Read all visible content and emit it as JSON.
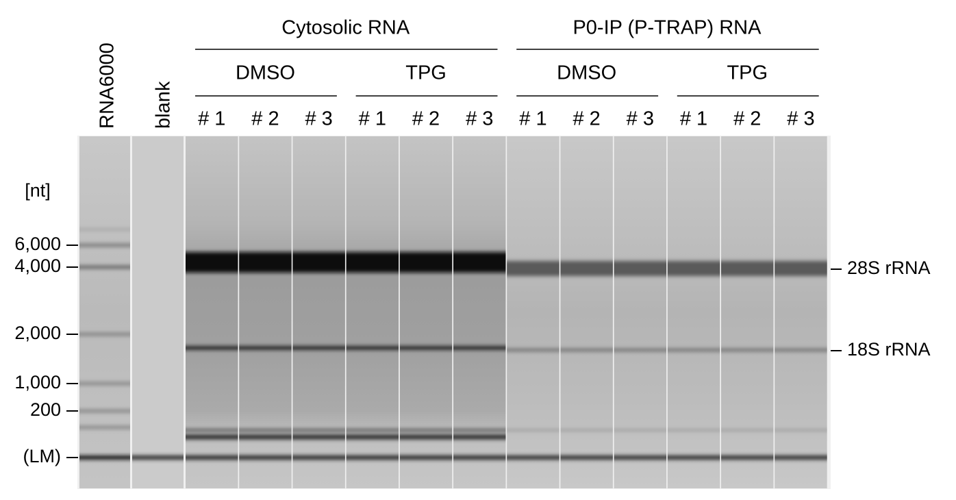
{
  "ladder_label": "RNA6000",
  "blank_label": "blank",
  "groups": [
    {
      "label": "Cytosolic RNA",
      "conditions": [
        {
          "label": "DMSO",
          "replicates": [
            "# 1",
            "# 2",
            "# 3"
          ]
        },
        {
          "label": "TPG",
          "replicates": [
            "# 1",
            "# 2",
            "# 3"
          ]
        }
      ]
    },
    {
      "label": "P0-IP (P-TRAP) RNA",
      "conditions": [
        {
          "label": "DMSO",
          "replicates": [
            "# 1",
            "# 2",
            "# 3"
          ]
        },
        {
          "label": "TPG",
          "replicates": [
            "# 1",
            "# 2",
            "# 3"
          ]
        }
      ]
    }
  ],
  "size_unit": "[nt]",
  "size_markers": [
    "6,000",
    "4,000",
    "2,000",
    "1,000",
    "200",
    "(LM)"
  ],
  "band_labels": [
    "28S rRNA",
    "18S rRNA"
  ]
}
